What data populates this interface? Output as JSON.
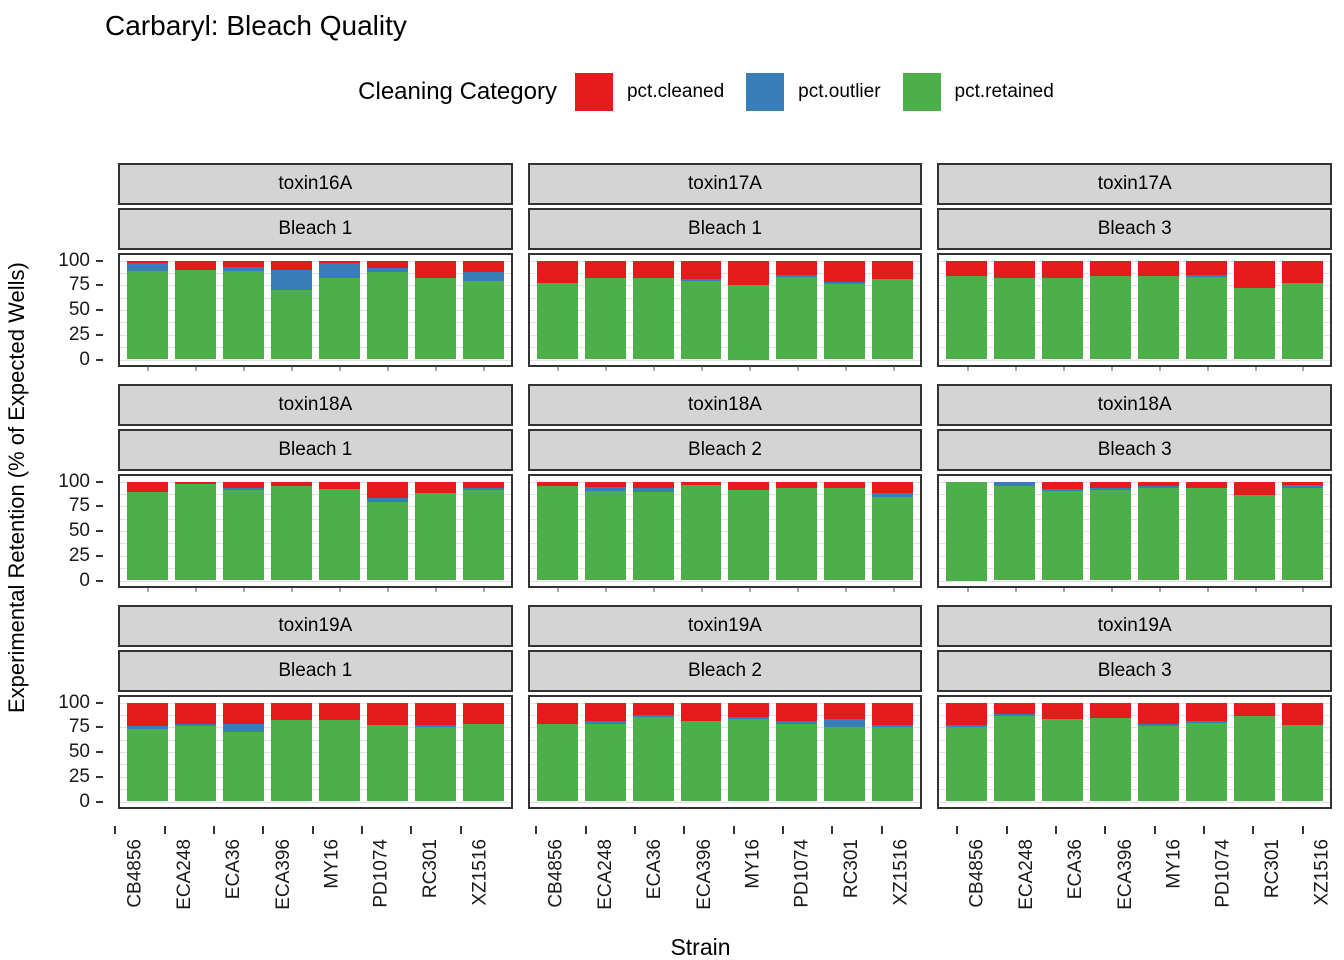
{
  "title": "Carbaryl: Bleach Quality",
  "legend": {
    "title": "Cleaning Category",
    "items": [
      {
        "label": "pct.cleaned",
        "color": "#E41A1C"
      },
      {
        "label": "pct.outlier",
        "color": "#377EB8"
      },
      {
        "label": "pct.retained",
        "color": "#4DAF4A"
      }
    ]
  },
  "axes": {
    "x_title": "Strain",
    "y_title": "Experimental Retention (% of Expected Wells)",
    "y_ticks": [
      100,
      75,
      50,
      25,
      0
    ]
  },
  "style_colors": {
    "strip_background": "#d4d4d4",
    "panel_border": "#333333",
    "gridline": "#e2e2e2"
  },
  "chart_data": {
    "type": "bar",
    "stacked": true,
    "ylim": [
      0,
      100
    ],
    "grid": "horizontal, light gray, every 12.5",
    "legend_position": "top",
    "categories": [
      "CB4856",
      "ECA248",
      "ECA36",
      "ECA396",
      "MY16",
      "PD1074",
      "RC301",
      "XZ1516"
    ],
    "series_order_top_to_bottom": [
      "pct.cleaned",
      "pct.outlier",
      "pct.retained"
    ],
    "facet_layout": {
      "rows": 3,
      "cols": 3
    },
    "facets": [
      {
        "strip_top": "toxin16A",
        "strip_bottom": "Bleach 1",
        "series": {
          "pct.cleaned": [
            3,
            10,
            7,
            10,
            3,
            8,
            18,
            12
          ],
          "pct.outlier": [
            8,
            0,
            4,
            20,
            15,
            4,
            0,
            9
          ],
          "pct.retained": [
            89,
            90,
            89,
            70,
            82,
            88,
            82,
            79
          ]
        }
      },
      {
        "strip_top": "toxin17A",
        "strip_bottom": "Bleach 1",
        "series": {
          "pct.cleaned": [
            23,
            18,
            18,
            19,
            25,
            15,
            22,
            19
          ],
          "pct.outlier": [
            0,
            0,
            0,
            2,
            0,
            2,
            2,
            0
          ],
          "pct.retained": [
            77,
            82,
            82,
            79,
            75,
            83,
            76,
            81
          ]
        }
      },
      {
        "strip_top": "toxin17A",
        "strip_bottom": "Bleach 3",
        "series": {
          "pct.cleaned": [
            16,
            18,
            18,
            16,
            16,
            15,
            28,
            23
          ],
          "pct.outlier": [
            0,
            0,
            0,
            0,
            0,
            2,
            0,
            0
          ],
          "pct.retained": [
            84,
            82,
            82,
            84,
            84,
            83,
            72,
            77
          ]
        }
      },
      {
        "strip_top": "toxin18A",
        "strip_bottom": "Bleach 1",
        "series": {
          "pct.cleaned": [
            11,
            3,
            7,
            5,
            8,
            17,
            12,
            7
          ],
          "pct.outlier": [
            0,
            0,
            2,
            0,
            0,
            4,
            0,
            2
          ],
          "pct.retained": [
            89,
            97,
            91,
            95,
            92,
            79,
            88,
            91
          ]
        }
      },
      {
        "strip_top": "toxin18A",
        "strip_bottom": "Bleach 2",
        "series": {
          "pct.cleaned": [
            5,
            6,
            7,
            4,
            9,
            7,
            7,
            12
          ],
          "pct.outlier": [
            0,
            4,
            4,
            0,
            0,
            0,
            0,
            4
          ],
          "pct.retained": [
            95,
            90,
            89,
            96,
            91,
            93,
            93,
            84
          ]
        }
      },
      {
        "strip_top": "toxin18A",
        "strip_bottom": "Bleach 3",
        "series": {
          "pct.cleaned": [
            0,
            0,
            8,
            7,
            5,
            7,
            14,
            4
          ],
          "pct.outlier": [
            0,
            5,
            2,
            2,
            2,
            0,
            0,
            3
          ],
          "pct.retained": [
            100,
            95,
            90,
            91,
            93,
            93,
            86,
            93
          ]
        }
      },
      {
        "strip_top": "toxin19A",
        "strip_bottom": "Bleach 1",
        "series": {
          "pct.cleaned": [
            24,
            22,
            22,
            18,
            18,
            23,
            23,
            22
          ],
          "pct.outlier": [
            3,
            2,
            8,
            0,
            0,
            0,
            2,
            0
          ],
          "pct.retained": [
            73,
            76,
            70,
            82,
            82,
            77,
            75,
            78
          ]
        }
      },
      {
        "strip_top": "toxin19A",
        "strip_bottom": "Bleach 2",
        "series": {
          "pct.cleaned": [
            22,
            19,
            13,
            19,
            15,
            19,
            17,
            23
          ],
          "pct.outlier": [
            0,
            3,
            2,
            0,
            2,
            3,
            8,
            2
          ],
          "pct.retained": [
            78,
            78,
            85,
            81,
            83,
            78,
            75,
            75
          ]
        }
      },
      {
        "strip_top": "toxin19A",
        "strip_bottom": "Bleach 3",
        "series": {
          "pct.cleaned": [
            23,
            12,
            17,
            16,
            22,
            19,
            14,
            23
          ],
          "pct.outlier": [
            2,
            2,
            0,
            0,
            2,
            2,
            0,
            0
          ],
          "pct.retained": [
            75,
            86,
            83,
            84,
            76,
            79,
            86,
            77
          ]
        }
      }
    ]
  }
}
